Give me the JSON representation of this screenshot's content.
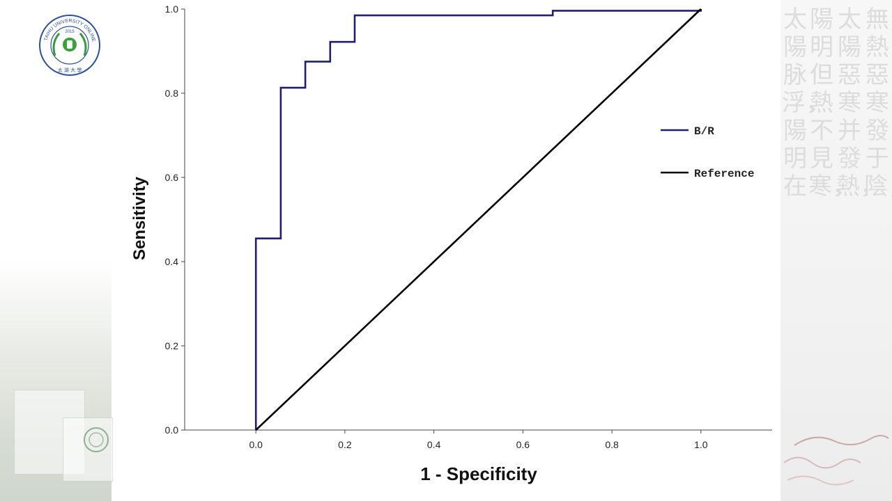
{
  "chart_data": {
    "type": "line",
    "xlabel": "1 - Specificity",
    "ylabel": "Sensitivity",
    "xlim": [
      -0.16,
      1.16
    ],
    "ylim": [
      0.0,
      1.0
    ],
    "x_ticks": [
      "0.0",
      "0.2",
      "0.4",
      "0.6",
      "0.8",
      "1.0"
    ],
    "y_ticks": [
      "0.0",
      "0.2",
      "0.4",
      "0.6",
      "0.8",
      "1.0"
    ],
    "legend_position": "right",
    "grid": false,
    "series": [
      {
        "name": "B/R",
        "color": "#1f1f6e",
        "points": [
          [
            0.0,
            0.0
          ],
          [
            0.0,
            0.455
          ],
          [
            0.056,
            0.455
          ],
          [
            0.056,
            0.813
          ],
          [
            0.111,
            0.813
          ],
          [
            0.111,
            0.875
          ],
          [
            0.167,
            0.875
          ],
          [
            0.167,
            0.922
          ],
          [
            0.222,
            0.922
          ],
          [
            0.222,
            0.985
          ],
          [
            0.667,
            0.985
          ],
          [
            0.667,
            0.996
          ],
          [
            1.0,
            0.996
          ],
          [
            1.0,
            1.0
          ]
        ]
      },
      {
        "name": "Reference",
        "color": "#000000",
        "points": [
          [
            0.0,
            0.0
          ],
          [
            1.0,
            1.0
          ]
        ]
      }
    ]
  },
  "background": {
    "calligraphy_columns": [
      "太陽脉浮，陽明在",
      "陽明但熱不見寒，",
      "太陽惡寒并發熱，",
      "無熱惡寒發于陰，"
    ]
  },
  "logo": {
    "ring_text": "TAIHU UNIVERSITY ONLINE",
    "year": "2015",
    "bottom_text": "太 湖 大 學"
  }
}
